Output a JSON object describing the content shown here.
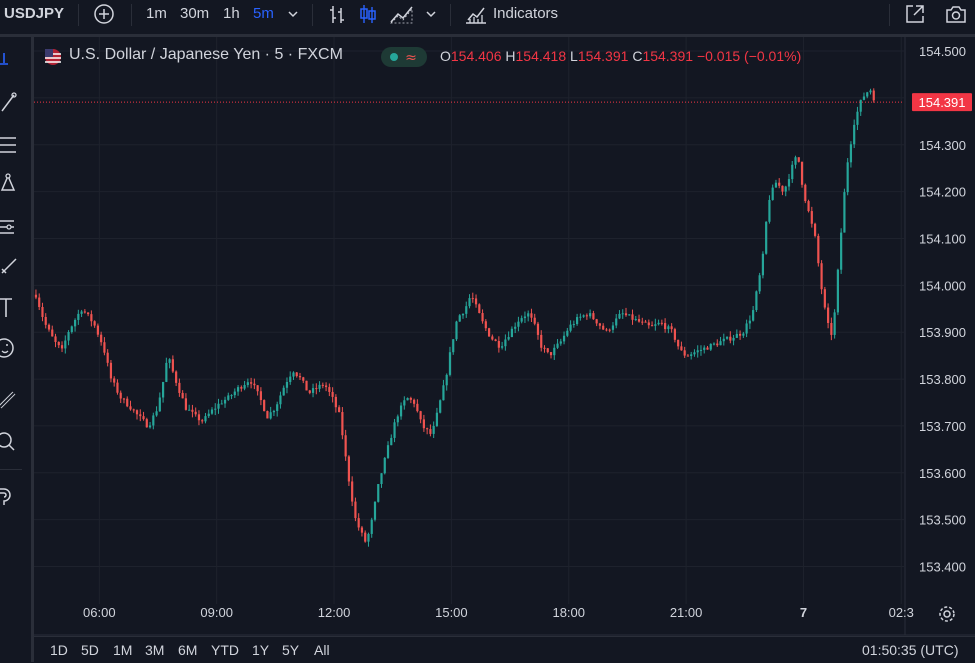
{
  "toolbar": {
    "symbol": "USDJPY",
    "intervals": [
      "1m",
      "30m",
      "1h",
      "5m"
    ],
    "active_interval": "5m",
    "indicators_label": "Indicators"
  },
  "legend": {
    "title": "U.S. Dollar / Japanese Yen · 5 · FXCM",
    "open_key": "O",
    "open": "154.406",
    "high_key": "H",
    "high": "154.418",
    "low_key": "L",
    "low": "154.391",
    "close_key": "C",
    "close": "154.391",
    "change": "−0.015 (−0.01%)"
  },
  "colors": {
    "background": "#131722",
    "up": "#26a69a",
    "down": "#ef5350",
    "grid": "#1e222d",
    "price_label_bg": "#f23645",
    "text": "#d1d4dc"
  },
  "bottombar": {
    "ranges": [
      "1D",
      "5D",
      "1M",
      "3M",
      "6M",
      "YTD",
      "1Y",
      "5Y",
      "All"
    ],
    "clock": "01:50:35 (UTC)"
  },
  "icons": [
    "plus-circle-icon",
    "bars-icon",
    "candles-icon",
    "area-icon",
    "chevron-down-icon",
    "indicators-icon",
    "expand-icon",
    "camera-icon",
    "crosshair-icon",
    "trendline-icon",
    "fib-icon",
    "pattern-icon",
    "forecast-icon",
    "brush-icon",
    "text-icon",
    "emoji-icon",
    "ruler-icon",
    "zoom-icon",
    "magnet-icon",
    "settings-icon"
  ],
  "chart_data": {
    "type": "candlestick",
    "title": "U.S. Dollar / Japanese Yen · 5 · FXCM",
    "xlabel": "",
    "ylabel": "",
    "ylim": [
      153.32,
      154.53
    ],
    "y_ticks": [
      "154.500",
      "154.400",
      "154.300",
      "154.200",
      "154.100",
      "154.000",
      "153.900",
      "153.800",
      "153.700",
      "153.600",
      "153.500",
      "153.400"
    ],
    "x_ticks": [
      "06:00",
      "09:00",
      "12:00",
      "15:00",
      "18:00",
      "21:00",
      "7",
      "02:3"
    ],
    "x_tick_hours": [
      6,
      9,
      12,
      15,
      18,
      21,
      24,
      26.5
    ],
    "x_range_hours": [
      4.33,
      26.57
    ],
    "last_price": 154.391,
    "last_price_label": "154.391",
    "grid": true,
    "path_hours": [
      4.38,
      4.6,
      4.85,
      5.05,
      5.2,
      5.4,
      5.55,
      5.85,
      6.1,
      6.3,
      6.55,
      6.8,
      7.0,
      7.25,
      7.45,
      7.6,
      7.75,
      7.9,
      8.2,
      8.45,
      8.65,
      8.85,
      9.1,
      9.3,
      9.55,
      9.85,
      10.1,
      10.3,
      10.5,
      10.75,
      10.95,
      11.15,
      11.35,
      11.55,
      11.75,
      11.95,
      12.15,
      12.35,
      12.55,
      12.7,
      12.82,
      12.95,
      13.15,
      13.4,
      13.6,
      13.85,
      14.05,
      14.25,
      14.5,
      14.65,
      14.85,
      15.0,
      15.15,
      15.35,
      15.5,
      15.65,
      15.8,
      16.0,
      16.25,
      16.5,
      16.75,
      16.95,
      17.1,
      17.3,
      17.5,
      17.8,
      18.0,
      18.25,
      18.5,
      18.75,
      18.95,
      19.15,
      19.35,
      19.6,
      19.85,
      20.1,
      20.35,
      20.65,
      20.85,
      21.0,
      21.3,
      21.6,
      21.9,
      22.2,
      22.45,
      22.7,
      22.95,
      23.1,
      23.3,
      23.5,
      23.7,
      23.85,
      24.0,
      24.15,
      24.3,
      24.45,
      24.6,
      24.75,
      24.9,
      25.1,
      25.3,
      25.5,
      25.7,
      25.85,
      26.0,
      26.1
    ],
    "path_prices": [
      153.98,
      153.92,
      153.88,
      153.86,
      153.9,
      153.93,
      153.95,
      153.92,
      153.87,
      153.8,
      153.76,
      153.74,
      153.72,
      153.7,
      153.73,
      153.78,
      153.85,
      153.81,
      153.74,
      153.72,
      153.71,
      153.73,
      153.75,
      153.76,
      153.78,
      153.8,
      153.76,
      153.72,
      153.74,
      153.79,
      153.82,
      153.8,
      153.77,
      153.78,
      153.79,
      153.76,
      153.72,
      153.6,
      153.5,
      153.47,
      153.45,
      153.49,
      153.58,
      153.66,
      153.72,
      153.76,
      153.75,
      153.7,
      153.68,
      153.73,
      153.8,
      153.87,
      153.93,
      153.95,
      153.98,
      153.95,
      153.92,
      153.89,
      153.87,
      153.9,
      153.93,
      153.94,
      153.92,
      153.87,
      153.85,
      153.88,
      153.91,
      153.93,
      153.94,
      153.92,
      153.9,
      153.92,
      153.94,
      153.93,
      153.92,
      153.91,
      153.92,
      153.9,
      153.86,
      153.85,
      153.86,
      153.87,
      153.88,
      153.89,
      153.9,
      153.94,
      154.05,
      154.18,
      154.22,
      154.2,
      154.25,
      154.28,
      154.2,
      154.15,
      154.1,
      154.0,
      153.92,
      153.89,
      154.05,
      154.25,
      154.35,
      154.4,
      154.42,
      154.39
    ]
  }
}
